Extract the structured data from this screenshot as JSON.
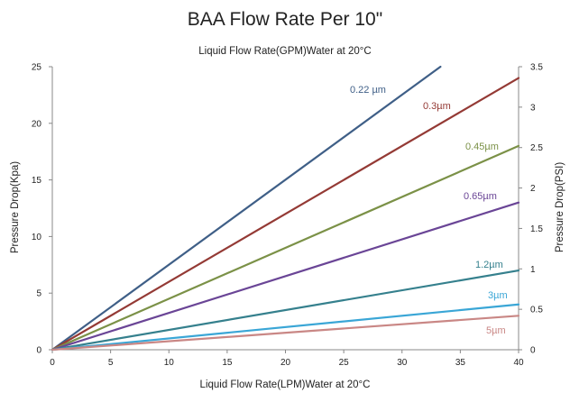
{
  "chart_data": {
    "type": "line",
    "title": "BAA  Flow Rate Per 10\"",
    "top_axis_label": "Liquid Flow Rate(GPM)Water at 20°C",
    "xlabel": "Liquid Flow Rate(LPM)Water at 20°C",
    "ylabel": "Pressure  Drop(Kpa)",
    "y2label": "Pressure  Drop(PSI)",
    "xlim": [
      0,
      40
    ],
    "ylim": [
      0,
      25
    ],
    "y2lim": [
      0,
      3.5
    ],
    "x_ticks": [
      "0",
      "5",
      "10",
      "15",
      "20",
      "25",
      "30",
      "35",
      "40"
    ],
    "y_ticks": [
      "0",
      "5",
      "10",
      "15",
      "20",
      "25"
    ],
    "y2_ticks": [
      "0",
      "0.5",
      "1",
      "1.5",
      "2",
      "2.5",
      "3",
      "3.5"
    ],
    "grid": false,
    "series": [
      {
        "name": "0.22 µm",
        "color": "#3f5f87",
        "x": [
          0,
          33.3
        ],
        "y": [
          0,
          25
        ]
      },
      {
        "name": "0.3µm",
        "color": "#943a35",
        "x": [
          0,
          40
        ],
        "y": [
          0,
          24
        ]
      },
      {
        "name": "0.45µm",
        "color": "#7b9147",
        "x": [
          0,
          40
        ],
        "y": [
          0,
          18
        ]
      },
      {
        "name": "0.65µm",
        "color": "#6a4596",
        "x": [
          0,
          40
        ],
        "y": [
          0,
          13
        ]
      },
      {
        "name": "1.2µm",
        "color": "#35808d",
        "x": [
          0,
          40
        ],
        "y": [
          0,
          7
        ]
      },
      {
        "name": "3µm",
        "color": "#3aa6d6",
        "x": [
          0,
          40
        ],
        "y": [
          0,
          4
        ]
      },
      {
        "name": "5µm",
        "color": "#c98785",
        "x": [
          0,
          40
        ],
        "y": [
          0,
          3
        ]
      }
    ]
  }
}
